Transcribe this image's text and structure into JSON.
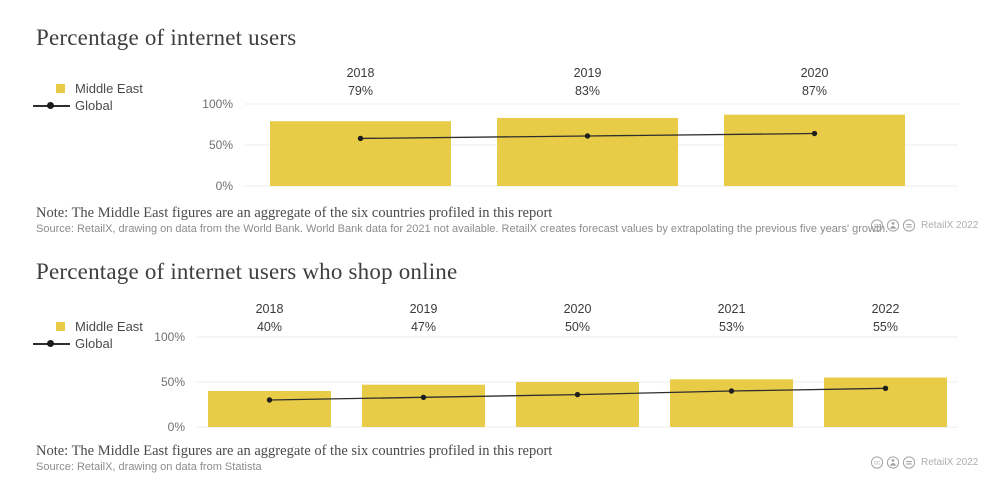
{
  "chart_data": [
    {
      "type": "bar+line",
      "title": "Percentage of internet users",
      "categories": [
        "2018",
        "2019",
        "2020"
      ],
      "value_labels": [
        "79%",
        "83%",
        "87%"
      ],
      "series": [
        {
          "name": "Middle East",
          "type": "bar",
          "color": "#e8cb47",
          "values": [
            79,
            83,
            87
          ]
        },
        {
          "name": "Global",
          "type": "line",
          "color": "#2e2e2e",
          "values": [
            58,
            61,
            64
          ]
        }
      ],
      "yticks": [
        {
          "value": 100,
          "label": "100%"
        },
        {
          "value": 50,
          "label": "50%"
        },
        {
          "value": 0,
          "label": "0%"
        }
      ],
      "ylim": [
        0,
        100
      ],
      "grid": true,
      "legend_position": "left",
      "note": "Note: The Middle East figures are an aggregate of the six countries profiled in this report",
      "source": "Source: RetailX, drawing on data from the World Bank. World Bank data for 2021 not available. RetailX creates forecast values by extrapolating the previous five years' growth.",
      "credit": "RetailX 2022",
      "license_icons": [
        "cc",
        "by",
        "nd"
      ]
    },
    {
      "type": "bar+line",
      "title": "Percentage of internet users who shop online",
      "categories": [
        "2018",
        "2019",
        "2020",
        "2021",
        "2022"
      ],
      "value_labels": [
        "40%",
        "47%",
        "50%",
        "53%",
        "55%"
      ],
      "series": [
        {
          "name": "Middle East",
          "type": "bar",
          "color": "#e8cb47",
          "values": [
            40,
            47,
            50,
            53,
            55
          ]
        },
        {
          "name": "Global",
          "type": "line",
          "color": "#2e2e2e",
          "values": [
            30,
            33,
            36,
            40,
            43
          ]
        }
      ],
      "yticks": [
        {
          "value": 100,
          "label": "100%"
        },
        {
          "value": 50,
          "label": "50%"
        },
        {
          "value": 0,
          "label": "0%"
        }
      ],
      "ylim": [
        0,
        100
      ],
      "grid": true,
      "legend_position": "left",
      "note": "Note: The Middle East figures are an aggregate of the six countries profiled in this report",
      "source": "Source: RetailX, drawing on data from Statista",
      "credit": "RetailX 2022",
      "license_icons": [
        "cc",
        "by",
        "nd"
      ]
    }
  ]
}
